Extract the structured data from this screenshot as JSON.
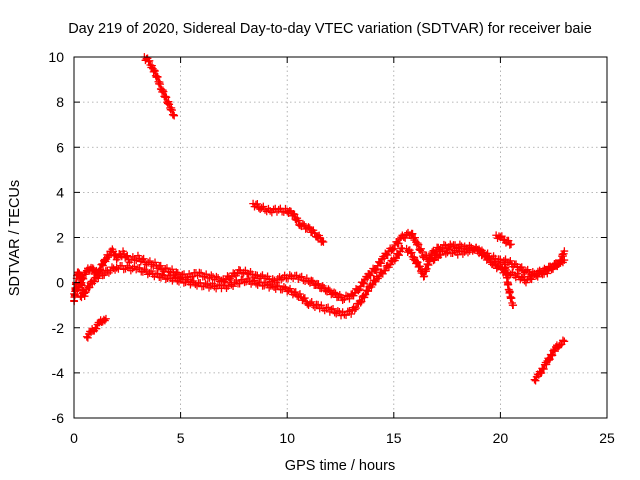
{
  "chart_data": {
    "type": "scatter",
    "title": "Day 219 of 2020, Sidereal Day-to-day VTEC variation (SDTVAR) for receiver baie",
    "xlabel": "GPS time / hours",
    "ylabel": "SDTVAR / TECUs",
    "xlim": [
      0,
      25
    ],
    "ylim": [
      -6,
      10
    ],
    "xticks": [
      "0",
      "5",
      "10",
      "15",
      "20",
      "25"
    ],
    "yticks": [
      "-6",
      "-4",
      "-2",
      "0",
      "2",
      "4",
      "6",
      "8",
      "10"
    ],
    "grid": true,
    "marker": "plus",
    "series_color": "#ff0000",
    "segments": [
      {
        "name": "main-band",
        "points": [
          [
            0.0,
            -0.5
          ],
          [
            0.2,
            -0.2
          ],
          [
            0.4,
            0.2
          ],
          [
            0.6,
            0.5
          ],
          [
            0.8,
            0.7
          ],
          [
            1.0,
            0.4
          ],
          [
            1.2,
            0.6
          ],
          [
            1.4,
            0.9
          ],
          [
            1.6,
            1.2
          ],
          [
            1.8,
            1.4
          ],
          [
            2.0,
            1.1
          ],
          [
            2.3,
            1.3
          ],
          [
            2.6,
            1.0
          ],
          [
            3.0,
            1.1
          ],
          [
            3.4,
            0.9
          ],
          [
            3.8,
            0.8
          ],
          [
            4.2,
            0.6
          ],
          [
            4.6,
            0.5
          ],
          [
            5.0,
            0.3
          ],
          [
            5.4,
            0.3
          ],
          [
            5.8,
            0.4
          ],
          [
            6.2,
            0.3
          ],
          [
            6.6,
            0.2
          ],
          [
            7.0,
            0.1
          ],
          [
            7.4,
            0.3
          ],
          [
            7.8,
            0.5
          ],
          [
            8.2,
            0.4
          ],
          [
            8.6,
            0.3
          ],
          [
            9.0,
            0.2
          ],
          [
            9.4,
            0.1
          ],
          [
            9.8,
            0.2
          ],
          [
            10.2,
            0.3
          ],
          [
            10.6,
            0.2
          ],
          [
            11.0,
            0.1
          ],
          [
            11.4,
            -0.1
          ],
          [
            11.8,
            -0.3
          ],
          [
            12.2,
            -0.5
          ],
          [
            12.6,
            -0.7
          ],
          [
            13.0,
            -0.6
          ],
          [
            13.4,
            -0.2
          ],
          [
            13.8,
            0.3
          ],
          [
            14.2,
            0.7
          ],
          [
            14.6,
            1.2
          ],
          [
            15.0,
            1.6
          ],
          [
            15.4,
            2.0
          ],
          [
            15.8,
            2.2
          ],
          [
            16.0,
            1.9
          ],
          [
            16.4,
            1.2
          ],
          [
            16.8,
            1.0
          ],
          [
            17.2,
            1.3
          ],
          [
            17.6,
            1.4
          ],
          [
            18.0,
            1.3
          ],
          [
            18.4,
            1.4
          ],
          [
            18.8,
            1.5
          ],
          [
            19.2,
            1.3
          ],
          [
            19.6,
            1.1
          ],
          [
            20.0,
            1.0
          ],
          [
            20.4,
            0.9
          ],
          [
            20.8,
            0.7
          ],
          [
            21.2,
            0.5
          ],
          [
            21.6,
            0.4
          ],
          [
            22.0,
            0.5
          ],
          [
            22.4,
            0.7
          ],
          [
            22.8,
            0.9
          ],
          [
            23.0,
            1.0
          ]
        ]
      },
      {
        "name": "lower-band",
        "points": [
          [
            0.3,
            -0.6
          ],
          [
            0.6,
            -0.3
          ],
          [
            0.9,
            0.1
          ],
          [
            1.2,
            0.3
          ],
          [
            2.0,
            0.7
          ],
          [
            3.0,
            0.6
          ],
          [
            4.0,
            0.3
          ],
          [
            5.0,
            0.1
          ],
          [
            6.0,
            -0.1
          ],
          [
            7.0,
            -0.2
          ],
          [
            8.0,
            0.1
          ],
          [
            9.0,
            -0.1
          ],
          [
            10.0,
            -0.3
          ],
          [
            10.6,
            -0.6
          ],
          [
            11.0,
            -0.9
          ],
          [
            11.6,
            -1.1
          ],
          [
            12.0,
            -1.2
          ],
          [
            12.6,
            -1.4
          ],
          [
            13.0,
            -1.3
          ],
          [
            13.4,
            -0.9
          ],
          [
            13.8,
            -0.3
          ],
          [
            14.2,
            0.2
          ],
          [
            14.6,
            0.6
          ],
          [
            15.0,
            1.0
          ],
          [
            15.4,
            1.5
          ]
        ]
      },
      {
        "name": "hump-band",
        "points": [
          [
            15.6,
            1.5
          ],
          [
            15.8,
            1.3
          ],
          [
            16.0,
            1.0
          ],
          [
            16.2,
            0.7
          ],
          [
            16.4,
            0.3
          ],
          [
            16.8,
            1.3
          ],
          [
            17.2,
            1.6
          ],
          [
            17.8,
            1.6
          ],
          [
            18.4,
            1.6
          ],
          [
            19.0,
            1.4
          ],
          [
            19.6,
            0.9
          ],
          [
            20.0,
            0.6
          ],
          [
            20.4,
            0.4
          ],
          [
            20.8,
            0.3
          ],
          [
            21.2,
            0.1
          ],
          [
            21.6,
            0.3
          ],
          [
            22.2,
            0.5
          ],
          [
            22.8,
            0.9
          ],
          [
            23.0,
            1.4
          ]
        ]
      },
      {
        "name": "spike-start",
        "points": [
          [
            0.0,
            -0.8
          ],
          [
            0.05,
            -0.4
          ],
          [
            0.1,
            0.0
          ],
          [
            0.15,
            0.3
          ],
          [
            0.2,
            0.5
          ],
          [
            0.3,
            0.2
          ],
          [
            0.4,
            -0.3
          ],
          [
            0.5,
            -0.6
          ]
        ]
      },
      {
        "name": "drop-20",
        "points": [
          [
            20.2,
            0.8
          ],
          [
            20.3,
            0.2
          ],
          [
            20.4,
            -0.3
          ],
          [
            20.5,
            -0.7
          ],
          [
            20.6,
            -1.0
          ]
        ]
      },
      {
        "name": "arc-early",
        "points": [
          [
            0.6,
            -2.4
          ],
          [
            0.8,
            -2.2
          ],
          [
            1.0,
            -2.0
          ],
          [
            1.2,
            -1.8
          ],
          [
            1.4,
            -1.6
          ],
          [
            1.5,
            -1.6
          ]
        ]
      },
      {
        "name": "arc-top",
        "points": [
          [
            3.3,
            10.0
          ],
          [
            3.5,
            9.8
          ],
          [
            3.7,
            9.5
          ],
          [
            3.9,
            9.1
          ],
          [
            4.1,
            8.6
          ],
          [
            4.3,
            8.2
          ],
          [
            4.5,
            7.8
          ],
          [
            4.7,
            7.4
          ]
        ]
      },
      {
        "name": "arc-mid",
        "points": [
          [
            8.4,
            3.5
          ],
          [
            8.8,
            3.3
          ],
          [
            9.2,
            3.2
          ],
          [
            9.6,
            3.2
          ],
          [
            10.0,
            3.2
          ],
          [
            10.3,
            3.0
          ],
          [
            10.6,
            2.6
          ],
          [
            11.0,
            2.4
          ],
          [
            11.4,
            2.1
          ],
          [
            11.7,
            1.8
          ]
        ]
      },
      {
        "name": "arc-twenty",
        "points": [
          [
            19.8,
            2.1
          ],
          [
            20.0,
            2.0
          ],
          [
            20.2,
            1.9
          ],
          [
            20.5,
            1.7
          ]
        ]
      },
      {
        "name": "arc-late",
        "points": [
          [
            21.6,
            -4.3
          ],
          [
            21.8,
            -4.1
          ],
          [
            22.0,
            -3.8
          ],
          [
            22.2,
            -3.5
          ],
          [
            22.4,
            -3.2
          ],
          [
            22.6,
            -2.9
          ],
          [
            22.8,
            -2.7
          ],
          [
            23.0,
            -2.6
          ]
        ]
      }
    ]
  }
}
